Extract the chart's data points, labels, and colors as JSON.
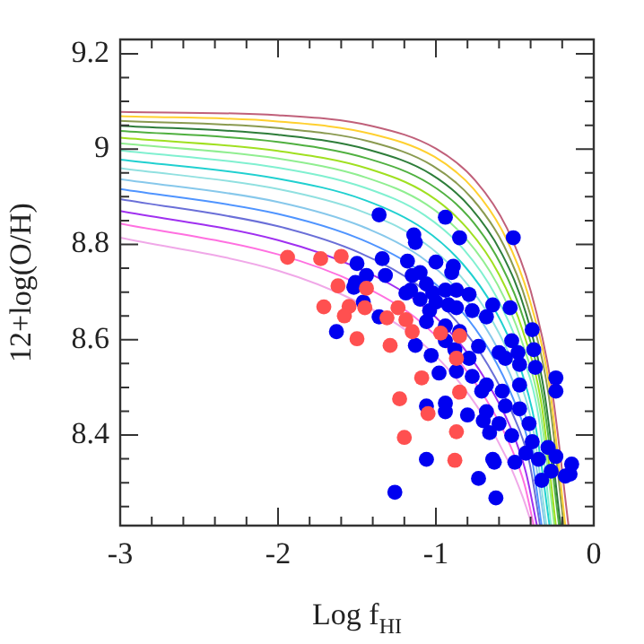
{
  "chart_data": {
    "type": "scatter",
    "xlabel": "Log f$_{HI}$",
    "ylabel": "12+log(O/H)",
    "xlim": [
      -3,
      0
    ],
    "ylim": [
      8.21,
      9.23
    ],
    "xticks": [
      -3,
      {
        "value": -2.8,
        "label": null
      },
      {
        "value": -2.6,
        "label": null
      },
      {
        "value": -2.4,
        "label": null
      },
      {
        "value": -2.2,
        "label": null
      },
      -2,
      {
        "value": -1.8,
        "label": null
      },
      {
        "value": -1.6,
        "label": null
      },
      {
        "value": -1.4,
        "label": null
      },
      {
        "value": -1.2,
        "label": null
      },
      -1,
      {
        "value": -0.8,
        "label": null
      },
      {
        "value": -0.6,
        "label": null
      },
      {
        "value": -0.4,
        "label": null
      },
      {
        "value": -0.2,
        "label": null
      },
      0
    ],
    "yticks": [
      {
        "value": 8.25,
        "label": null
      },
      {
        "value": 8.3,
        "label": null
      },
      {
        "value": 8.35,
        "label": null
      },
      8.4,
      {
        "value": 8.45,
        "label": null
      },
      {
        "value": 8.5,
        "label": null
      },
      {
        "value": 8.55,
        "label": null
      },
      8.6,
      {
        "value": 8.65,
        "label": null
      },
      {
        "value": 8.7,
        "label": null
      },
      {
        "value": 8.75,
        "label": null
      },
      8.8,
      {
        "value": 8.85,
        "label": null
      },
      {
        "value": 8.9,
        "label": null
      },
      {
        "value": 8.95,
        "label": null
      },
      9,
      {
        "value": 9.05,
        "label": null
      },
      {
        "value": 9.1,
        "label": null
      },
      {
        "value": 9.15,
        "label": null
      },
      9.2
    ],
    "grid": false,
    "legend": false,
    "series": [
      {
        "type": "line",
        "color": "#c0607a",
        "x": [
          -3,
          -2,
          -1.4,
          -1,
          -0.75,
          -0.55,
          -0.4,
          -0.27,
          -0.16
        ],
        "values": [
          9.078,
          9.071,
          9.048,
          9.001,
          8.934,
          8.834,
          8.703,
          8.507,
          8.21
        ]
      },
      {
        "type": "line",
        "color": "#ffd030",
        "x": [
          -3,
          -2,
          -1.41,
          -1.01,
          -0.76,
          -0.56,
          -0.41,
          -0.28,
          -0.18
        ],
        "values": [
          9.069,
          9.058,
          9.032,
          8.984,
          8.916,
          8.816,
          8.688,
          8.5,
          8.21
        ]
      },
      {
        "type": "line",
        "color": "#8a9a50",
        "x": [
          -3,
          -2,
          -1.41,
          -1.02,
          -0.77,
          -0.57,
          -0.42,
          -0.29,
          -0.19
        ],
        "values": [
          9.059,
          9.044,
          9.015,
          8.965,
          8.896,
          8.798,
          8.672,
          8.492,
          8.21
        ]
      },
      {
        "type": "line",
        "color": "#2e7d3a",
        "x": [
          -3,
          -2,
          -1.42,
          -1.03,
          -0.78,
          -0.58,
          -0.43,
          -0.31,
          -0.21
        ],
        "values": [
          9.049,
          9.03,
          8.998,
          8.947,
          8.877,
          8.779,
          8.656,
          8.483,
          8.21
        ]
      },
      {
        "type": "line",
        "color": "#50b040",
        "x": [
          -3,
          -2,
          -1.43,
          -1.04,
          -0.79,
          -0.59,
          -0.44,
          -0.32,
          -0.22
        ],
        "values": [
          9.038,
          9.015,
          8.98,
          8.927,
          8.857,
          8.759,
          8.639,
          8.474,
          8.21
        ]
      },
      {
        "type": "line",
        "color": "#a0e020",
        "x": [
          -3,
          -2,
          -1.43,
          -1.05,
          -0.8,
          -0.6,
          -0.45,
          -0.33,
          -0.24
        ],
        "values": [
          9.024,
          8.996,
          8.959,
          8.905,
          8.833,
          8.737,
          8.619,
          8.462,
          8.21
        ]
      },
      {
        "type": "line",
        "color": "#90ee90",
        "x": [
          -3,
          -2,
          -1.44,
          -1.06,
          -0.81,
          -0.61,
          -0.46,
          -0.34,
          -0.25
        ],
        "values": [
          9.012,
          8.98,
          8.94,
          8.884,
          8.812,
          8.716,
          8.601,
          8.452,
          8.21
        ]
      },
      {
        "type": "line",
        "color": "#80f0d0",
        "x": [
          -3,
          -2,
          -1.45,
          -1.07,
          -0.82,
          -0.62,
          -0.47,
          -0.35,
          -0.27
        ],
        "values": [
          8.997,
          8.961,
          8.919,
          8.861,
          8.788,
          8.692,
          8.581,
          8.439,
          8.21
        ]
      },
      {
        "type": "line",
        "color": "#20d0d0",
        "x": [
          -3,
          -2,
          -1.45,
          -1.08,
          -0.83,
          -0.63,
          -0.48,
          -0.37,
          -0.28
        ],
        "values": [
          8.978,
          8.938,
          8.893,
          8.833,
          8.759,
          8.665,
          8.556,
          8.421,
          8.21
        ]
      },
      {
        "type": "line",
        "color": "#90e0e0",
        "x": [
          -3,
          -2,
          -1.46,
          -1.09,
          -0.84,
          -0.64,
          -0.49,
          -0.38,
          -0.3
        ],
        "values": [
          8.96,
          8.916,
          8.868,
          8.807,
          8.732,
          8.638,
          8.532,
          8.405,
          8.21
        ]
      },
      {
        "type": "line",
        "color": "#87c8eb",
        "x": [
          -3,
          -2,
          -1.47,
          -1.1,
          -0.85,
          -0.65,
          -0.5,
          -0.39,
          -0.31
        ],
        "values": [
          8.937,
          8.889,
          8.838,
          8.775,
          8.7,
          8.606,
          8.503,
          8.384,
          8.21
        ]
      },
      {
        "type": "line",
        "color": "#4f94ff",
        "x": [
          -3,
          -2,
          -1.47,
          -1.11,
          -0.86,
          -0.66,
          -0.51,
          -0.4,
          -0.33
        ],
        "values": [
          8.916,
          8.864,
          8.81,
          8.746,
          8.669,
          8.577,
          8.476,
          8.365,
          8.21
        ]
      },
      {
        "type": "line",
        "color": "#6a6fd8",
        "x": [
          -3,
          -2,
          -1.48,
          -1.12,
          -0.87,
          -0.67,
          -0.52,
          -0.41,
          -0.34
        ],
        "values": [
          8.895,
          8.838,
          8.782,
          8.716,
          8.639,
          8.547,
          8.449,
          8.346,
          8.21
        ]
      },
      {
        "type": "line",
        "color": "#a030f0",
        "x": [
          -3,
          -2,
          -1.49,
          -1.13,
          -0.88,
          -0.68,
          -0.53,
          -0.43,
          -0.36
        ],
        "values": [
          8.87,
          8.809,
          8.75,
          8.683,
          8.605,
          8.513,
          8.418,
          8.322,
          8.21
        ]
      },
      {
        "type": "line",
        "color": "#ff70e0",
        "x": [
          -3,
          -2,
          -1.49,
          -1.14,
          -0.89,
          -0.69,
          -0.54,
          -0.44,
          -0.38
        ],
        "values": [
          8.844,
          8.779,
          8.717,
          8.649,
          8.569,
          8.479,
          8.386,
          8.298,
          8.21
        ]
      },
      {
        "type": "line",
        "color": "#f0a8e8",
        "x": [
          -3,
          -2,
          -1.5,
          -1.15,
          -0.9,
          -0.7,
          -0.55,
          -0.45,
          -0.39
        ],
        "values": [
          8.814,
          8.745,
          8.68,
          8.61,
          8.53,
          8.44,
          8.35,
          8.27,
          8.21
        ]
      },
      {
        "type": "scatter",
        "marker": "circle",
        "color": "#ff5050",
        "x": [
          -1.94,
          -1.73,
          -1.6,
          -1.62,
          -1.44,
          -1.71,
          -1.55,
          -1.58,
          -1.45,
          -1.24,
          -1.31,
          -1.19,
          -1.15,
          -1.5,
          -1.29,
          -0.97,
          -0.85,
          -0.87,
          -1.09,
          -0.85,
          -1.23,
          -1.05,
          -0.87,
          -1.2,
          -0.88
        ],
        "values": [
          8.773,
          8.77,
          8.775,
          8.713,
          8.708,
          8.669,
          8.67,
          8.65,
          8.667,
          8.667,
          8.646,
          8.642,
          8.617,
          8.602,
          8.588,
          8.614,
          8.608,
          8.561,
          8.52,
          8.49,
          8.476,
          8.445,
          8.407,
          8.395,
          8.347
        ]
      },
      {
        "type": "scatter",
        "marker": "circle",
        "color": "#0000f0",
        "x": [
          -1.36,
          -0.94,
          -1.14,
          -1.13,
          -0.85,
          -0.51,
          -1.5,
          -1.34,
          -1.18,
          -1,
          -0.89,
          -0.9,
          -1.44,
          -1.32,
          -1.51,
          -1.52,
          -1.15,
          -1.1,
          -1.06,
          -1.16,
          -1.02,
          -0.94,
          -0.87,
          -0.79,
          -1.19,
          -1.1,
          -1,
          -0.92,
          -1.04,
          -0.87,
          -0.77,
          -0.64,
          -0.53,
          -0.68,
          -1.36,
          -1.46,
          -1.06,
          -0.94,
          -1.63,
          -1.13,
          -1.03,
          -0.94,
          -0.85,
          -0.88,
          -0.79,
          -0.73,
          -0.6,
          -0.52,
          -0.48,
          -0.39,
          -0.38,
          -0.56,
          -0.47,
          -0.37,
          -0.24,
          -0.24,
          -0.98,
          -0.87,
          -0.77,
          -0.68,
          -0.71,
          -0.58,
          -0.47,
          -0.56,
          -0.47,
          -0.68,
          -0.6,
          -0.41,
          -0.52,
          -0.39,
          -0.29,
          -0.43,
          -1.06,
          -0.94,
          -0.94,
          -0.8,
          -0.7,
          -0.66,
          -0.64,
          -0.5,
          -0.35,
          -0.24,
          -0.14,
          -0.15,
          -0.27,
          -1.06,
          -0.73,
          -0.62,
          -1.26,
          -0.33,
          -0.63,
          -0.18
        ],
        "values": [
          8.862,
          8.857,
          8.82,
          8.804,
          8.814,
          8.814,
          8.76,
          8.77,
          8.765,
          8.763,
          8.754,
          8.741,
          8.735,
          8.735,
          8.72,
          8.71,
          8.735,
          8.741,
          8.717,
          8.704,
          8.698,
          8.704,
          8.704,
          8.695,
          8.698,
          8.685,
          8.679,
          8.673,
          8.661,
          8.667,
          8.661,
          8.673,
          8.667,
          8.648,
          8.648,
          8.679,
          8.638,
          8.629,
          8.617,
          8.588,
          8.567,
          8.598,
          8.617,
          8.579,
          8.561,
          8.586,
          8.573,
          8.598,
          8.573,
          8.621,
          8.579,
          8.561,
          8.548,
          8.542,
          8.52,
          8.492,
          8.53,
          8.534,
          8.523,
          8.505,
          8.492,
          8.492,
          8.505,
          8.461,
          8.455,
          8.449,
          8.424,
          8.424,
          8.399,
          8.386,
          8.374,
          8.362,
          8.461,
          8.467,
          8.449,
          8.442,
          8.43,
          8.405,
          8.349,
          8.343,
          8.349,
          8.355,
          8.339,
          8.318,
          8.324,
          8.349,
          8.309,
          8.268,
          8.28,
          8.305,
          8.343,
          8.314
        ]
      }
    ]
  }
}
